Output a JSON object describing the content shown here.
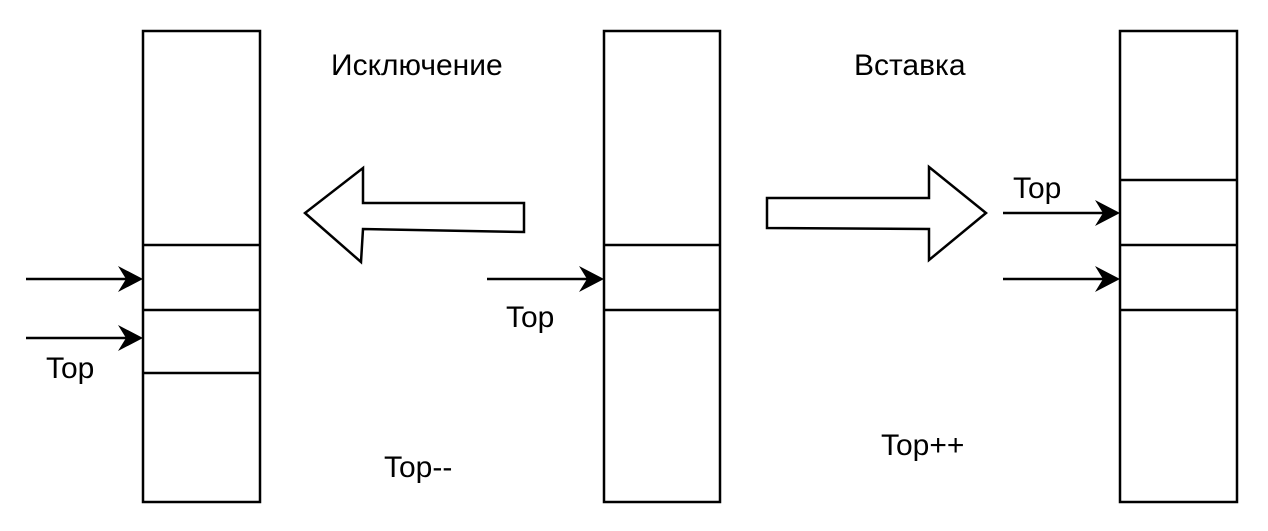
{
  "labels": {
    "removal": "Исключение",
    "insertion": "Вставка",
    "top_left": "Top",
    "top_middle": "Top",
    "top_right": "Top",
    "decrement": "Top--",
    "increment": "Top++"
  },
  "stacks": [
    {
      "name": "stack-after-removal",
      "cells": 2
    },
    {
      "name": "stack-initial",
      "cells": 1
    },
    {
      "name": "stack-after-insertion",
      "cells": 2
    }
  ],
  "colors": {
    "stroke": "#000000",
    "fill": "#ffffff"
  }
}
